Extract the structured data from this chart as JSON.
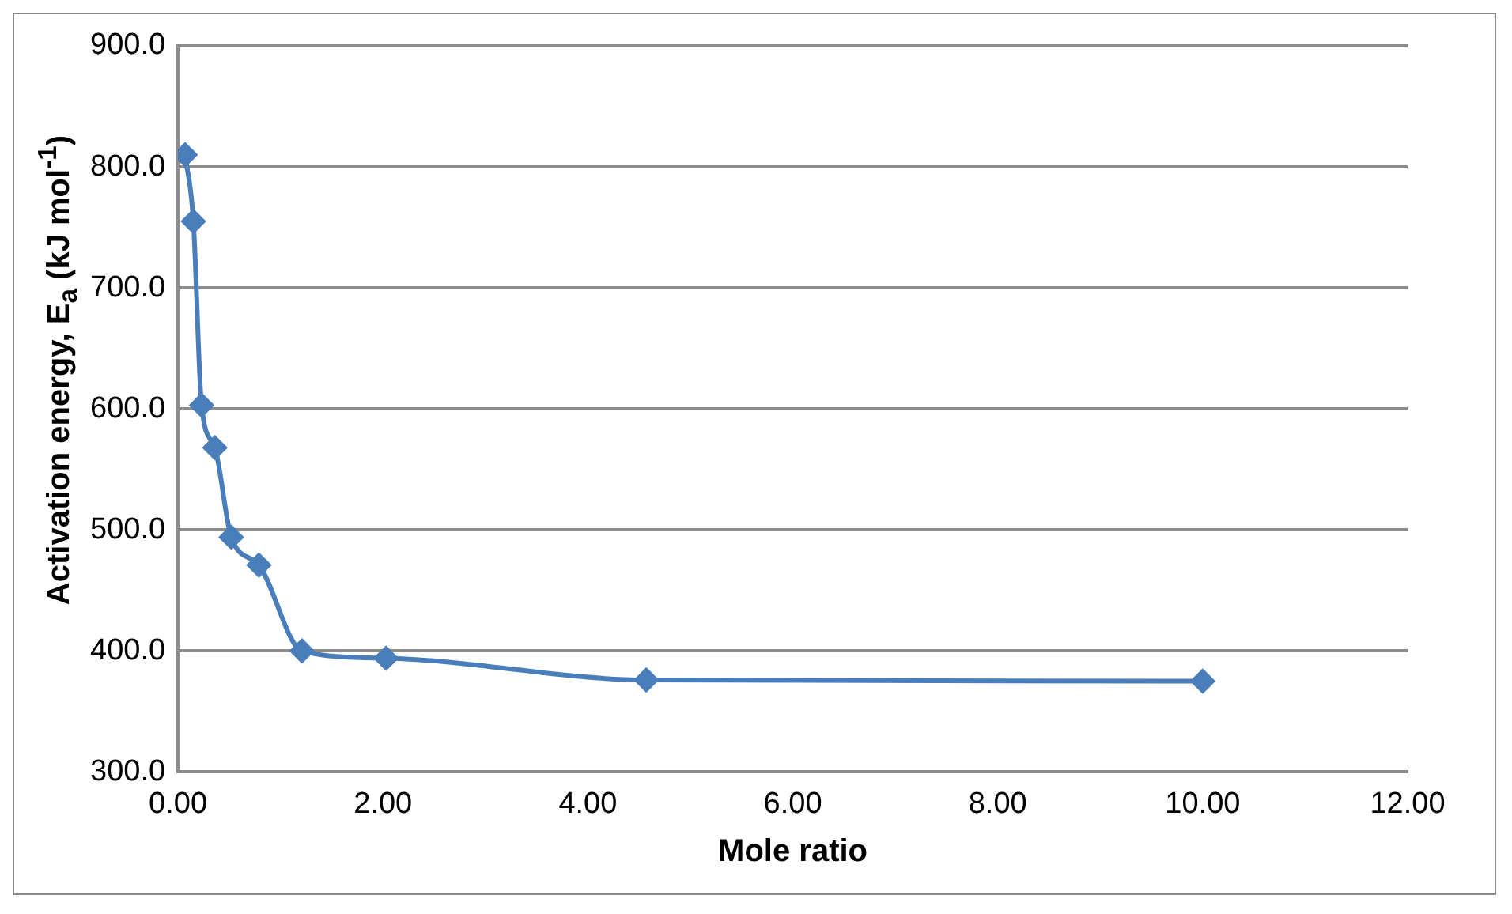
{
  "chart_data": {
    "type": "line",
    "xlabel": "Mole ratio",
    "ylabel": "Activation energy, E$_{a}$ (kJ mol$^{-1}$)",
    "x": [
      0.07,
      0.15,
      0.23,
      0.36,
      0.52,
      0.79,
      1.21,
      2.03,
      4.57,
      10.0
    ],
    "series": [
      {
        "color": "#4a7ebb",
        "values": [
          810,
          755,
          603,
          568,
          494,
          471,
          400,
          394,
          376,
          375
        ]
      }
    ],
    "xlim": [
      0,
      12
    ],
    "xticks": [
      {
        "value": 0,
        "label": "0.00"
      },
      {
        "value": 2,
        "label": "2.00"
      },
      {
        "value": 4,
        "label": "4.00"
      },
      {
        "value": 6,
        "label": "6.00"
      },
      {
        "value": 8,
        "label": "8.00"
      },
      {
        "value": 10,
        "label": "10.00"
      },
      {
        "value": 12,
        "label": "12.00"
      }
    ],
    "ylim": [
      300,
      900
    ],
    "yticks": [
      {
        "value": 300,
        "label": "300.0"
      },
      {
        "value": 400,
        "label": "400.0"
      },
      {
        "value": 500,
        "label": "500.0"
      },
      {
        "value": 600,
        "label": "600.0"
      },
      {
        "value": 700,
        "label": "700.0"
      },
      {
        "value": 800,
        "label": "800.0"
      },
      {
        "value": 900,
        "label": "900.0"
      }
    ],
    "grid": "y",
    "marker": "diamond",
    "line_style": "solid",
    "legend": false
  }
}
